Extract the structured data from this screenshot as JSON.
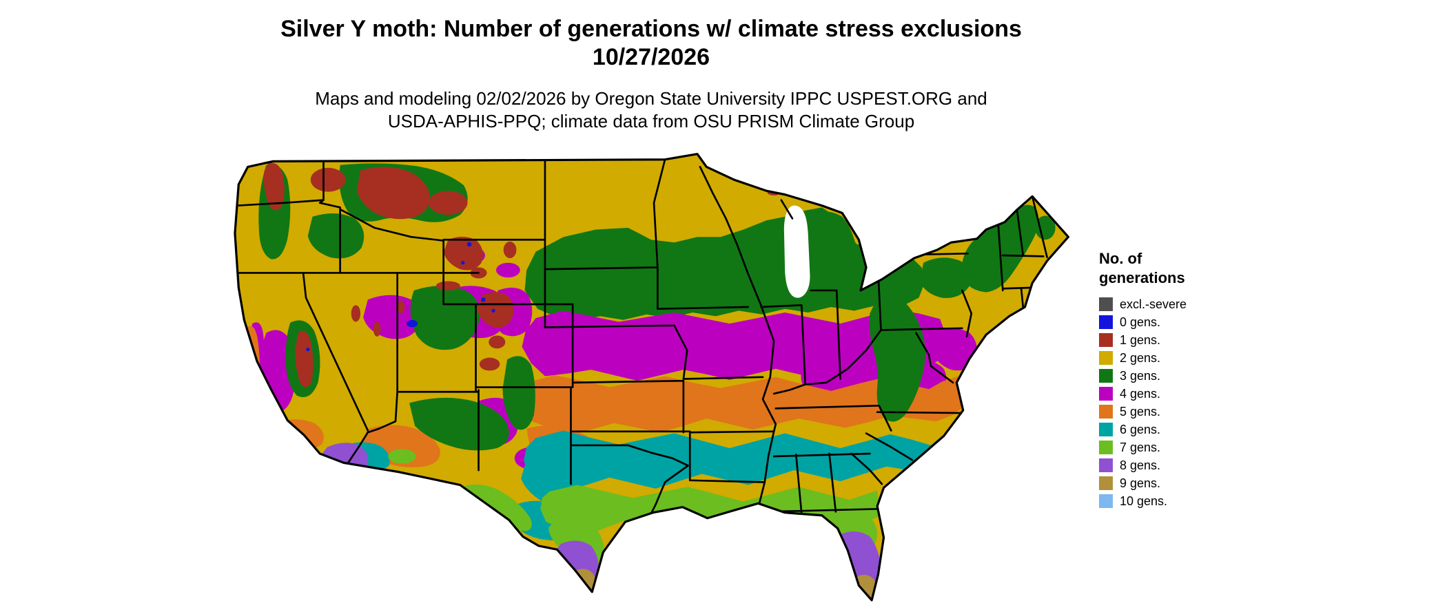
{
  "header": {
    "title_line1": "Silver Y moth: Number of generations w/ climate stress exclusions",
    "title_line2": "10/27/2026",
    "subtitle_line1": "Maps and modeling 02/02/2026 by Oregon State University IPPC USPEST.ORG and",
    "subtitle_line2": "USDA-APHIS-PPQ; climate data from OSU PRISM Climate Group"
  },
  "legend": {
    "title_line1": "No. of",
    "title_line2": "generations",
    "items": [
      {
        "key": "excl",
        "label": "excl.-severe",
        "color": "#4f4f4f"
      },
      {
        "key": "g0",
        "label": "0 gens.",
        "color": "#1414dd"
      },
      {
        "key": "g1",
        "label": "1 gens.",
        "color": "#a62f22"
      },
      {
        "key": "g2",
        "label": "2 gens.",
        "color": "#d1ab00"
      },
      {
        "key": "g3",
        "label": "3 gens.",
        "color": "#117714"
      },
      {
        "key": "g4",
        "label": "4 gens.",
        "color": "#bc00c0"
      },
      {
        "key": "g5",
        "label": "5 gens.",
        "color": "#e0751c"
      },
      {
        "key": "g6",
        "label": "6 gens.",
        "color": "#00a3a3"
      },
      {
        "key": "g7",
        "label": "7 gens.",
        "color": "#6cbd1f"
      },
      {
        "key": "g8",
        "label": "8 gens.",
        "color": "#9050d2"
      },
      {
        "key": "g9",
        "label": "9 gens.",
        "color": "#b0903a"
      },
      {
        "key": "g10",
        "label": "10 gens.",
        "color": "#7db8f0"
      }
    ]
  },
  "map": {
    "region_shown": "Contiguous United States",
    "bands_north_to_south": [
      "2 gens.",
      "3 gens.",
      "4 gens.",
      "5 gens.",
      "6 gens.",
      "7 gens.",
      "8 gens.",
      "9 gens."
    ]
  }
}
